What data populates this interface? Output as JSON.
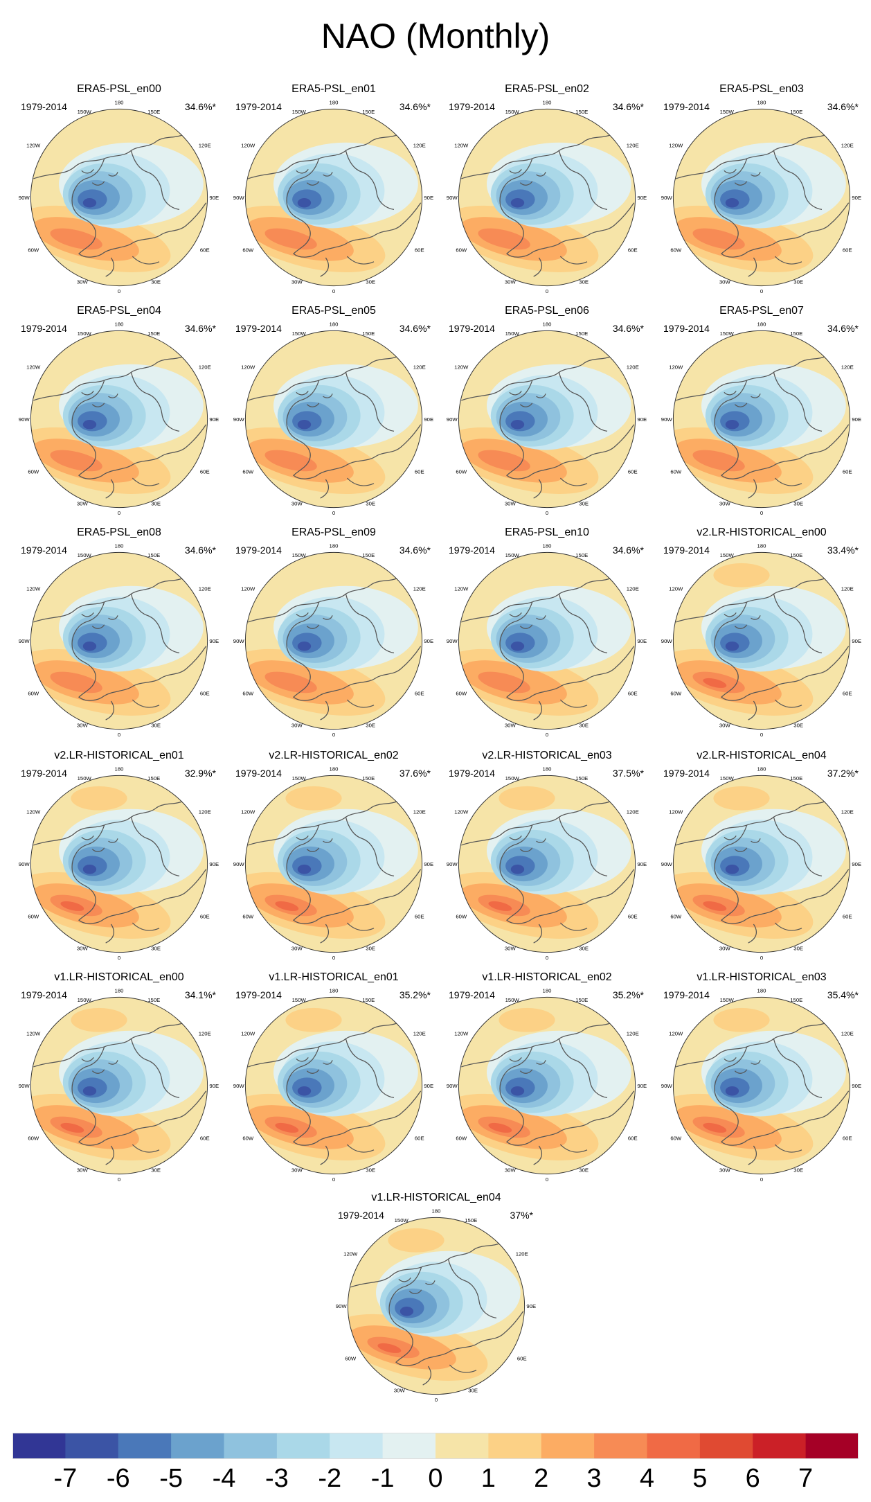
{
  "title": "NAO (Monthly)",
  "colorbar": {
    "ticks": [
      "-7",
      "-6",
      "-5",
      "-4",
      "-3",
      "-2",
      "-1",
      "0",
      "1",
      "2",
      "3",
      "4",
      "5",
      "6",
      "7"
    ],
    "colors": [
      "#313695",
      "#3b54a5",
      "#4a78b9",
      "#6ba2cd",
      "#8fc2de",
      "#aad8e8",
      "#c8e7f1",
      "#e3f1f1",
      "#f6e4a8",
      "#fcd186",
      "#fcac63",
      "#f78b55",
      "#f06a45",
      "#e04a32",
      "#cb2027",
      "#a50026"
    ]
  },
  "panels": [
    {
      "name": "ERA5-PSL_en00",
      "years": "1979-2014",
      "pct": "34.6%*",
      "variant": 0
    },
    {
      "name": "ERA5-PSL_en01",
      "years": "1979-2014",
      "pct": "34.6%*",
      "variant": 0
    },
    {
      "name": "ERA5-PSL_en02",
      "years": "1979-2014",
      "pct": "34.6%*",
      "variant": 0
    },
    {
      "name": "ERA5-PSL_en03",
      "years": "1979-2014",
      "pct": "34.6%*",
      "variant": 0
    },
    {
      "name": "ERA5-PSL_en04",
      "years": "1979-2014",
      "pct": "34.6%*",
      "variant": 0
    },
    {
      "name": "ERA5-PSL_en05",
      "years": "1979-2014",
      "pct": "34.6%*",
      "variant": 0
    },
    {
      "name": "ERA5-PSL_en06",
      "years": "1979-2014",
      "pct": "34.6%*",
      "variant": 0
    },
    {
      "name": "ERA5-PSL_en07",
      "years": "1979-2014",
      "pct": "34.6%*",
      "variant": 0
    },
    {
      "name": "ERA5-PSL_en08",
      "years": "1979-2014",
      "pct": "34.6%*",
      "variant": 0
    },
    {
      "name": "ERA5-PSL_en09",
      "years": "1979-2014",
      "pct": "34.6%*",
      "variant": 0
    },
    {
      "name": "ERA5-PSL_en10",
      "years": "1979-2014",
      "pct": "34.6%*",
      "variant": 0
    },
    {
      "name": "v2.LR-HISTORICAL_en00",
      "years": "1979-2014",
      "pct": "33.4%*",
      "variant": 1
    },
    {
      "name": "v2.LR-HISTORICAL_en01",
      "years": "1979-2014",
      "pct": "32.9%*",
      "variant": 1
    },
    {
      "name": "v2.LR-HISTORICAL_en02",
      "years": "1979-2014",
      "pct": "37.6%*",
      "variant": 1
    },
    {
      "name": "v2.LR-HISTORICAL_en03",
      "years": "1979-2014",
      "pct": "37.5%*",
      "variant": 1
    },
    {
      "name": "v2.LR-HISTORICAL_en04",
      "years": "1979-2014",
      "pct": "37.2%*",
      "variant": 1
    },
    {
      "name": "v1.LR-HISTORICAL_en00",
      "years": "1979-2014",
      "pct": "34.1%*",
      "variant": 1
    },
    {
      "name": "v1.LR-HISTORICAL_en01",
      "years": "1979-2014",
      "pct": "35.2%*",
      "variant": 1
    },
    {
      "name": "v1.LR-HISTORICAL_en02",
      "years": "1979-2014",
      "pct": "35.2%*",
      "variant": 1
    },
    {
      "name": "v1.LR-HISTORICAL_en03",
      "years": "1979-2014",
      "pct": "35.4%*",
      "variant": 1
    },
    {
      "name": "v1.LR-HISTORICAL_en04",
      "years": "1979-2014",
      "pct": "37%*",
      "variant": 1
    }
  ],
  "lon_labels": [
    "180",
    "150W",
    "150E",
    "120W",
    "120E",
    "90W",
    "90E",
    "60W",
    "60E",
    "30W",
    "30E",
    "0"
  ]
}
